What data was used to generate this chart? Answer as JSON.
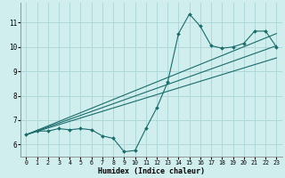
{
  "title": "",
  "xlabel": "Humidex (Indice chaleur)",
  "background_color": "#d0eeee",
  "grid_color": "#b0d8d8",
  "line_color": "#1a6b6b",
  "xlim": [
    -0.5,
    23.5
  ],
  "ylim": [
    5.5,
    11.8
  ],
  "xticks": [
    0,
    1,
    2,
    3,
    4,
    5,
    6,
    7,
    8,
    9,
    10,
    11,
    12,
    13,
    14,
    15,
    16,
    17,
    18,
    19,
    20,
    21,
    22,
    23
  ],
  "yticks": [
    6,
    7,
    8,
    9,
    10,
    11
  ],
  "data_x": [
    0,
    1,
    2,
    3,
    4,
    5,
    6,
    7,
    8,
    9,
    10,
    11,
    12,
    13,
    14,
    15,
    16,
    17,
    18,
    19,
    20,
    21,
    22,
    23
  ],
  "data_y": [
    6.4,
    6.55,
    6.55,
    6.65,
    6.6,
    6.65,
    6.6,
    6.35,
    6.25,
    5.7,
    5.75,
    6.65,
    7.5,
    8.55,
    10.55,
    11.35,
    10.85,
    10.05,
    9.95,
    10.0,
    10.15,
    10.65,
    10.65,
    10.0
  ],
  "trend1_x": [
    0,
    23
  ],
  "trend1_y": [
    6.4,
    9.55
  ],
  "trend2_x": [
    0,
    23
  ],
  "trend2_y": [
    6.4,
    10.05
  ],
  "trend3_x": [
    0,
    23
  ],
  "trend3_y": [
    6.4,
    10.55
  ]
}
